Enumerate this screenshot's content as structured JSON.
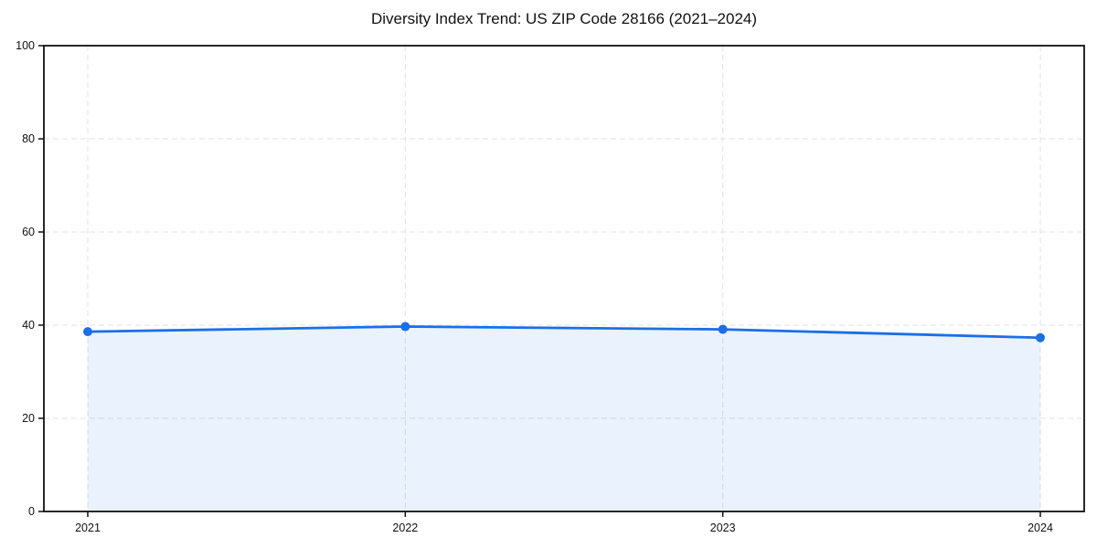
{
  "chart_data": {
    "type": "area",
    "title": "Diversity Index Trend: US ZIP Code 28166 (2021–2024)",
    "x": [
      2021,
      2022,
      2023,
      2024
    ],
    "x_tick_labels": [
      "2021",
      "2022",
      "2023",
      "2024"
    ],
    "series": [
      {
        "name": "Diversity Index",
        "values": [
          38.6,
          39.7,
          39.1,
          37.3
        ]
      }
    ],
    "xlabel": "",
    "ylabel": "",
    "ylim": [
      0,
      100
    ],
    "yticks": [
      0,
      20,
      40,
      60,
      80,
      100
    ],
    "grid": {
      "visible": true,
      "style": "dashed",
      "color": "#e2e2e2"
    },
    "legend": "none",
    "colors": {
      "line": "#1a6fe8",
      "marker": "#1a6fe8",
      "fill": "rgba(26,111,232,0.09)",
      "frame": "#111111",
      "tick_label": "#111111",
      "title": "#111111"
    }
  }
}
